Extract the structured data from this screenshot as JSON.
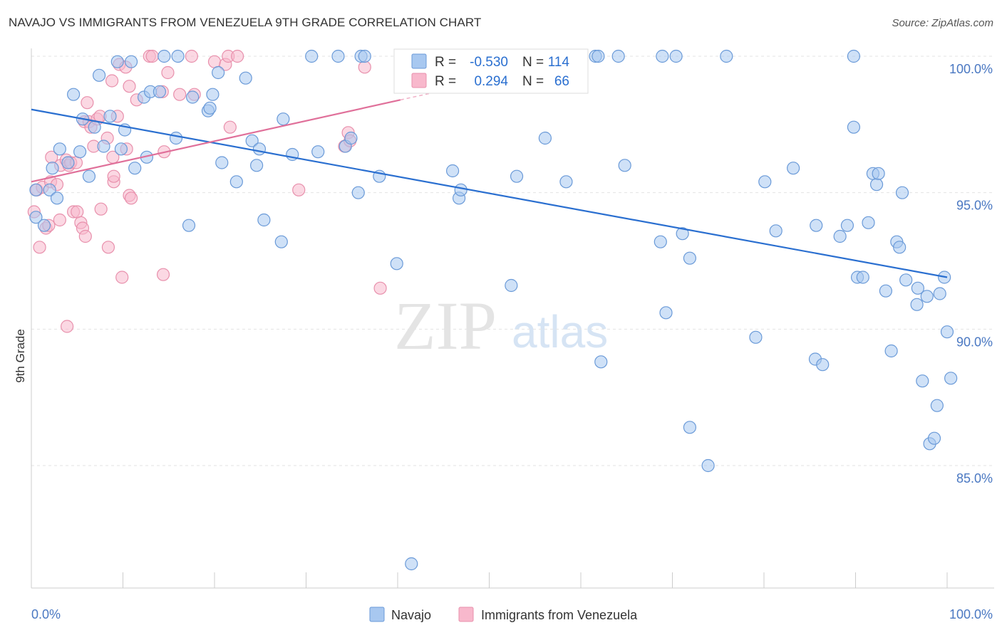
{
  "title": "NAVAJO VS IMMIGRANTS FROM VENEZUELA 9TH GRADE CORRELATION CHART",
  "source": "Source: ZipAtlas.com",
  "watermark": {
    "zip": "ZIP",
    "atlas": "atlas"
  },
  "colors": {
    "navajo_fill": "#a8c8f0",
    "navajo_stroke": "#6a9ad8",
    "navajo_line": "#2a6fd0",
    "venezuela_fill": "#f8b8cc",
    "venezuela_stroke": "#e890ac",
    "venezuela_line": "#e0709a",
    "tick_label": "#4a78c2",
    "grid": "#e3e3e3"
  },
  "legend": {
    "rows": [
      {
        "r_label": "R =",
        "r_value": "-0.530",
        "n_label": "N =",
        "n_value": "114"
      },
      {
        "r_label": "R =",
        "r_value": "0.294",
        "n_label": "N =",
        "n_value": "66"
      }
    ]
  },
  "bottom_legend": [
    "Navajo",
    "Immigrants from Venezuela"
  ],
  "chart_data": {
    "type": "scatter",
    "xlabel": "",
    "ylabel": "9th Grade",
    "xlim": [
      0,
      100
    ],
    "ylim": [
      80.5,
      101
    ],
    "x_tick_labels": [
      "0.0%",
      "100.0%"
    ],
    "y_ticks": [
      100,
      95,
      90,
      85
    ],
    "y_tick_labels": [
      "100.0%",
      "95.0%",
      "90.0%",
      "85.0%"
    ],
    "grid": true,
    "series": [
      {
        "name": "Navajo",
        "trend": {
          "x": [
            0,
            100
          ],
          "y": [
            98.05,
            91.9
          ]
        },
        "points": [
          [
            0.5,
            94.1
          ],
          [
            0.5,
            95.1
          ],
          [
            1.4,
            93.8
          ],
          [
            2.0,
            95.1
          ],
          [
            2.3,
            95.9
          ],
          [
            2.8,
            94.8
          ],
          [
            3.1,
            96.6
          ],
          [
            4.0,
            96.1
          ],
          [
            4.6,
            98.6
          ],
          [
            5.3,
            96.5
          ],
          [
            5.6,
            97.7
          ],
          [
            6.3,
            95.6
          ],
          [
            6.9,
            97.4
          ],
          [
            7.4,
            99.3
          ],
          [
            7.9,
            96.7
          ],
          [
            8.6,
            97.8
          ],
          [
            9.4,
            99.8
          ],
          [
            9.8,
            96.6
          ],
          [
            10.2,
            97.3
          ],
          [
            10.9,
            99.8
          ],
          [
            11.3,
            95.9
          ],
          [
            12.3,
            98.5
          ],
          [
            12.6,
            96.3
          ],
          [
            13.0,
            98.7
          ],
          [
            14.0,
            98.7
          ],
          [
            14.5,
            100.0
          ],
          [
            15.8,
            97.0
          ],
          [
            16.0,
            100.0
          ],
          [
            17.2,
            93.8
          ],
          [
            17.6,
            98.5
          ],
          [
            19.3,
            98.0
          ],
          [
            19.5,
            98.1
          ],
          [
            19.8,
            98.6
          ],
          [
            20.4,
            99.4
          ],
          [
            20.8,
            96.1
          ],
          [
            22.4,
            95.4
          ],
          [
            23.4,
            99.2
          ],
          [
            24.1,
            96.9
          ],
          [
            24.6,
            96.0
          ],
          [
            24.9,
            96.6
          ],
          [
            25.4,
            94.0
          ],
          [
            27.3,
            93.2
          ],
          [
            27.5,
            97.7
          ],
          [
            28.5,
            96.4
          ],
          [
            30.6,
            100.0
          ],
          [
            31.3,
            96.5
          ],
          [
            33.5,
            100.0
          ],
          [
            34.3,
            96.7
          ],
          [
            34.9,
            97.0
          ],
          [
            35.7,
            95.0
          ],
          [
            36.0,
            100.0
          ],
          [
            36.4,
            100.0
          ],
          [
            38.0,
            95.6
          ],
          [
            39.9,
            92.4
          ],
          [
            41.5,
            81.4
          ],
          [
            46.0,
            95.8
          ],
          [
            46.7,
            94.8
          ],
          [
            46.9,
            95.1
          ],
          [
            52.4,
            91.6
          ],
          [
            53.0,
            95.6
          ],
          [
            53.4,
            100.0
          ],
          [
            56.1,
            97.0
          ],
          [
            58.4,
            95.4
          ],
          [
            61.6,
            100.0
          ],
          [
            61.9,
            100.0
          ],
          [
            62.2,
            88.8
          ],
          [
            64.1,
            100.0
          ],
          [
            64.8,
            96.0
          ],
          [
            68.7,
            93.2
          ],
          [
            68.9,
            100.0
          ],
          [
            69.3,
            90.6
          ],
          [
            70.4,
            100.0
          ],
          [
            71.1,
            93.5
          ],
          [
            71.9,
            92.6
          ],
          [
            71.9,
            86.4
          ],
          [
            73.9,
            85.0
          ],
          [
            75.9,
            100.0
          ],
          [
            79.1,
            89.7
          ],
          [
            80.1,
            95.4
          ],
          [
            81.3,
            93.6
          ],
          [
            83.2,
            95.9
          ],
          [
            85.6,
            88.9
          ],
          [
            85.7,
            93.8
          ],
          [
            86.4,
            88.7
          ],
          [
            88.3,
            93.4
          ],
          [
            89.1,
            93.8
          ],
          [
            89.8,
            97.4
          ],
          [
            89.8,
            100.0
          ],
          [
            90.2,
            91.9
          ],
          [
            90.8,
            91.9
          ],
          [
            91.4,
            93.9
          ],
          [
            91.9,
            95.7
          ],
          [
            92.3,
            95.3
          ],
          [
            92.5,
            95.7
          ],
          [
            93.3,
            91.4
          ],
          [
            93.9,
            89.2
          ],
          [
            94.5,
            93.2
          ],
          [
            94.8,
            93.0
          ],
          [
            95.1,
            95.0
          ],
          [
            95.5,
            91.8
          ],
          [
            96.7,
            90.9
          ],
          [
            96.8,
            91.5
          ],
          [
            97.3,
            88.1
          ],
          [
            97.8,
            91.2
          ],
          [
            98.1,
            85.8
          ],
          [
            98.6,
            86.0
          ],
          [
            98.9,
            87.2
          ],
          [
            99.2,
            91.3
          ],
          [
            99.7,
            91.9
          ],
          [
            100.0,
            89.9
          ],
          [
            100.4,
            88.2
          ]
        ]
      },
      {
        "name": "Immigrants from Venezuela",
        "trend": {
          "x": [
            0,
            40.3
          ],
          "y": [
            95.4,
            98.4
          ]
        },
        "trend_extension": {
          "x": [
            40.3,
            59.2
          ],
          "y": [
            98.4,
            99.8
          ]
        },
        "points": [
          [
            0.3,
            94.3
          ],
          [
            0.6,
            95.1
          ],
          [
            0.9,
            93.0
          ],
          [
            1.2,
            95.2
          ],
          [
            1.6,
            93.7
          ],
          [
            1.9,
            93.8
          ],
          [
            2.1,
            95.4
          ],
          [
            2.2,
            96.3
          ],
          [
            2.8,
            95.3
          ],
          [
            3.1,
            94.0
          ],
          [
            3.2,
            96.0
          ],
          [
            3.8,
            96.2
          ],
          [
            3.9,
            90.1
          ],
          [
            4.1,
            96.0
          ],
          [
            4.3,
            96.1
          ],
          [
            4.6,
            94.3
          ],
          [
            4.9,
            96.1
          ],
          [
            5.0,
            94.3
          ],
          [
            5.4,
            93.9
          ],
          [
            5.6,
            93.7
          ],
          [
            5.8,
            97.6
          ],
          [
            5.9,
            93.4
          ],
          [
            6.1,
            98.3
          ],
          [
            6.3,
            97.6
          ],
          [
            6.5,
            97.4
          ],
          [
            6.8,
            96.7
          ],
          [
            7.2,
            97.7
          ],
          [
            7.5,
            97.8
          ],
          [
            7.6,
            94.4
          ],
          [
            8.3,
            97.0
          ],
          [
            8.4,
            93.0
          ],
          [
            8.8,
            99.1
          ],
          [
            8.9,
            96.3
          ],
          [
            9.0,
            95.4
          ],
          [
            9.0,
            95.6
          ],
          [
            9.4,
            97.8
          ],
          [
            9.6,
            99.7
          ],
          [
            9.9,
            91.9
          ],
          [
            10.3,
            99.6
          ],
          [
            10.4,
            96.6
          ],
          [
            10.7,
            98.9
          ],
          [
            10.7,
            94.9
          ],
          [
            10.9,
            94.8
          ],
          [
            11.5,
            98.4
          ],
          [
            12.9,
            100.0
          ],
          [
            13.2,
            100.0
          ],
          [
            14.3,
            98.7
          ],
          [
            14.4,
            92.0
          ],
          [
            14.5,
            96.5
          ],
          [
            14.9,
            99.4
          ],
          [
            16.2,
            98.6
          ],
          [
            17.5,
            100.0
          ],
          [
            17.8,
            98.6
          ],
          [
            20.0,
            99.8
          ],
          [
            21.2,
            99.7
          ],
          [
            21.5,
            100.0
          ],
          [
            21.7,
            97.4
          ],
          [
            22.5,
            100.0
          ],
          [
            29.2,
            95.1
          ],
          [
            34.2,
            96.7
          ],
          [
            34.6,
            97.2
          ],
          [
            34.8,
            96.9
          ],
          [
            36.4,
            99.6
          ],
          [
            38.1,
            91.5
          ],
          [
            48.8,
            100.0
          ],
          [
            52.7,
            100.0
          ]
        ]
      }
    ]
  }
}
